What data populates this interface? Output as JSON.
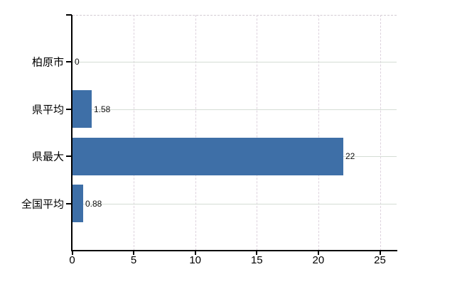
{
  "chart_data": {
    "type": "bar",
    "orientation": "horizontal",
    "title": "",
    "xlabel": "",
    "ylabel": "",
    "categories": [
      "柏原市",
      "県平均",
      "県最大",
      "全国平均"
    ],
    "values": [
      0,
      1.58,
      22,
      0.88
    ],
    "value_labels": [
      "0",
      "1.58",
      "22",
      "0.88"
    ],
    "xticks": [
      0,
      5,
      10,
      15,
      20,
      25
    ],
    "xtick_labels": [
      "0",
      "5",
      "10",
      "15",
      "20",
      "25"
    ],
    "xlim": [
      0,
      26.4
    ],
    "grid": {
      "horizontal_lines": "solid, one per category",
      "vertical_lines": "dashed, at each x tick",
      "top_border": "dashed"
    },
    "legend_position": "none"
  },
  "colors": {
    "background": "#ffffff",
    "bar": "#3e6fa7",
    "axis": "#000000",
    "grid_horizontal": "#d5ddd5",
    "grid_vertical": "#ddd2dd",
    "top_border": "#d2cad2",
    "label_text": "#000000",
    "value_text": "#111111"
  }
}
